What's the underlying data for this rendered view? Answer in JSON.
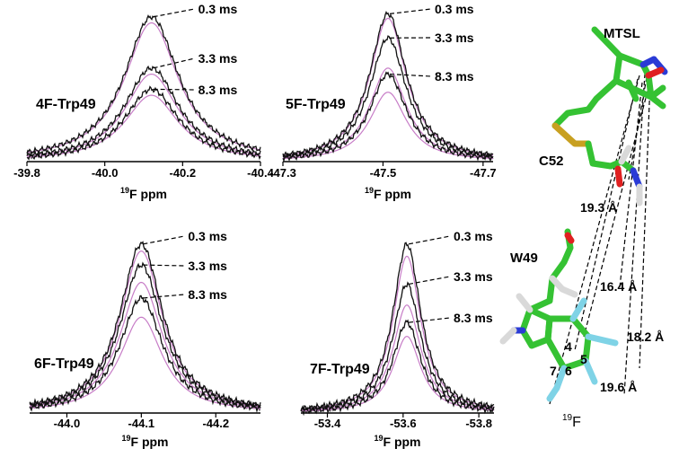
{
  "chart_data": [
    {
      "type": "line",
      "panel_label": "4F-Trp49",
      "xlabel_iso": "19",
      "xlabel_rest": "F ppm",
      "x_ticks": [
        "-39.8",
        "-40.0",
        "-40.2",
        "-40.4"
      ],
      "tick_values": [
        -39.8,
        -40.0,
        -40.2,
        -40.4
      ],
      "xlim": [
        -39.8,
        -40.4
      ],
      "reversed_x": true,
      "peak_center": -40.12,
      "peak_width": 0.085,
      "series": [
        {
          "name": "0.3 ms",
          "black_height": 0.96,
          "pink_height": 0.92
        },
        {
          "name": "3.3 ms",
          "black_height": 0.62,
          "pink_height": 0.58
        },
        {
          "name": "8.3 ms",
          "black_height": 0.48,
          "pink_height": 0.44
        }
      ]
    },
    {
      "type": "line",
      "panel_label": "5F-Trp49",
      "xlabel_iso": "19",
      "xlabel_rest": "F ppm",
      "x_ticks": [
        "-47.3",
        "-47.5",
        "-47.7"
      ],
      "tick_values": [
        -47.3,
        -47.5,
        -47.7
      ],
      "xlim": [
        -47.3,
        -47.72
      ],
      "reversed_x": true,
      "peak_center": -47.51,
      "peak_width": 0.045,
      "series": [
        {
          "name": "0.3 ms",
          "black_height": 0.98,
          "pink_height": 0.95
        },
        {
          "name": "3.3 ms",
          "black_height": 0.82,
          "pink_height": 0.62
        },
        {
          "name": "8.3 ms",
          "black_height": 0.58,
          "pink_height": 0.46
        }
      ]
    },
    {
      "type": "line",
      "panel_label": "6F-Trp49",
      "xlabel_iso": "19",
      "xlabel_rest": "F ppm",
      "x_ticks": [
        "-44.0",
        "-44.1",
        "-44.2"
      ],
      "tick_values": [
        -44.0,
        -44.1,
        -44.2
      ],
      "xlim": [
        -43.95,
        -44.26
      ],
      "reversed_x": true,
      "peak_center": -44.1,
      "peak_width": 0.035,
      "series": [
        {
          "name": "0.3 ms",
          "black_height": 0.97,
          "pink_height": 0.93
        },
        {
          "name": "3.3 ms",
          "black_height": 0.85,
          "pink_height": 0.75
        },
        {
          "name": "8.3 ms",
          "black_height": 0.66,
          "pink_height": 0.55
        }
      ]
    },
    {
      "type": "line",
      "panel_label": "7F-Trp49",
      "xlabel_iso": "19",
      "xlabel_rest": "F ppm",
      "x_ticks": [
        "-53.4",
        "-53.6",
        "-53.8"
      ],
      "tick_values": [
        -53.4,
        -53.6,
        -53.8
      ],
      "xlim": [
        -53.33,
        -53.84
      ],
      "reversed_x": true,
      "peak_center": -53.61,
      "peak_width": 0.045,
      "series": [
        {
          "name": "0.3 ms",
          "black_height": 0.97,
          "pink_height": 0.9
        },
        {
          "name": "3.3 ms",
          "black_height": 0.74,
          "pink_height": 0.62
        },
        {
          "name": "8.3 ms",
          "black_height": 0.52,
          "pink_height": 0.44
        }
      ]
    }
  ],
  "structure": {
    "labels": {
      "mtsl": "MTSL",
      "c52": "C52",
      "w49": "W49",
      "f19_iso": "19",
      "f19_elem": "F"
    },
    "ring_numbers": [
      "4",
      "5",
      "6",
      "7"
    ],
    "distances": [
      "19.3 Å",
      "16.4 Å",
      "18.2 Å",
      "19.6 Å"
    ],
    "colors": {
      "carbon": "#35c233",
      "sulfur": "#c8a020",
      "oxygen": "#e02020",
      "nitrogen": "#2a3bd6",
      "fluorine": "#7fd3e6",
      "hydrogen": "#d9d9d9"
    }
  },
  "colors": {
    "experimental": "#111111",
    "simulated": "#c77dc7"
  }
}
